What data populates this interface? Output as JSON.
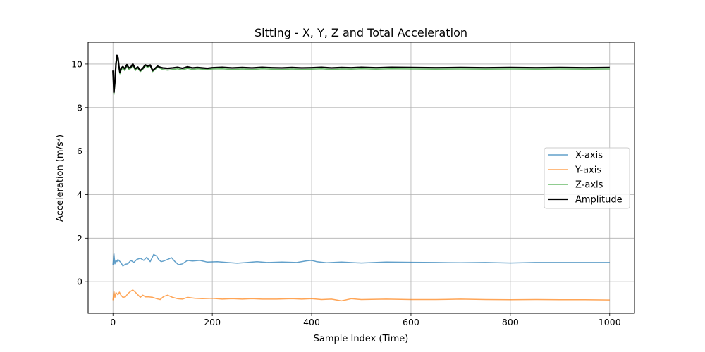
{
  "chart_data": {
    "type": "line",
    "title": "Sitting - X, Y, Z and Total Acceleration",
    "xlabel": "Sample Index (Time)",
    "ylabel": "Acceleration (m/s²)",
    "xlim": [
      -50,
      1050
    ],
    "ylim": [
      -1.45,
      11.0
    ],
    "xticks": [
      0,
      200,
      400,
      600,
      800,
      1000
    ],
    "yticks": [
      0,
      2,
      4,
      6,
      8,
      10
    ],
    "grid": true,
    "legend_position": "center-right",
    "series": [
      {
        "name": "X-axis",
        "color": "#1f77b4",
        "alpha": 0.7,
        "width": 1.5,
        "x": [
          0,
          2,
          4,
          6,
          8,
          10,
          13,
          16,
          20,
          25,
          30,
          36,
          42,
          48,
          55,
          62,
          68,
          75,
          82,
          88,
          92,
          97,
          102,
          110,
          118,
          125,
          132,
          140,
          150,
          160,
          175,
          190,
          210,
          230,
          250,
          270,
          290,
          310,
          340,
          370,
          390,
          400,
          410,
          430,
          460,
          500,
          550,
          600,
          650,
          700,
          750,
          800,
          850,
          900,
          950,
          1000
        ],
        "y": [
          0.78,
          1.28,
          0.82,
          0.98,
          0.92,
          1.02,
          0.95,
          0.88,
          0.72,
          0.8,
          0.82,
          0.98,
          0.88,
          1.02,
          1.08,
          0.98,
          1.12,
          0.92,
          1.25,
          1.18,
          1.02,
          0.92,
          0.95,
          1.02,
          1.1,
          0.92,
          0.78,
          0.82,
          0.98,
          0.95,
          0.98,
          0.9,
          0.92,
          0.88,
          0.85,
          0.88,
          0.92,
          0.88,
          0.9,
          0.88,
          0.96,
          0.98,
          0.92,
          0.87,
          0.9,
          0.86,
          0.9,
          0.89,
          0.88,
          0.87,
          0.88,
          0.86,
          0.88,
          0.88,
          0.88,
          0.88
        ]
      },
      {
        "name": "Y-axis",
        "color": "#ff7f0e",
        "alpha": 0.7,
        "width": 1.5,
        "x": [
          0,
          2,
          4,
          6,
          8,
          10,
          13,
          16,
          20,
          25,
          30,
          35,
          40,
          45,
          50,
          55,
          60,
          66,
          72,
          80,
          88,
          95,
          102,
          110,
          120,
          130,
          140,
          150,
          165,
          180,
          200,
          220,
          240,
          260,
          280,
          300,
          330,
          360,
          380,
          400,
          420,
          440,
          460,
          480,
          500,
          550,
          600,
          650,
          700,
          750,
          800,
          850,
          900,
          950,
          1000
        ],
        "y": [
          -0.85,
          -0.45,
          -0.72,
          -0.5,
          -0.55,
          -0.6,
          -0.48,
          -0.62,
          -0.72,
          -0.7,
          -0.55,
          -0.45,
          -0.38,
          -0.48,
          -0.6,
          -0.72,
          -0.62,
          -0.7,
          -0.7,
          -0.72,
          -0.78,
          -0.82,
          -0.68,
          -0.62,
          -0.72,
          -0.78,
          -0.8,
          -0.72,
          -0.76,
          -0.78,
          -0.76,
          -0.8,
          -0.78,
          -0.8,
          -0.78,
          -0.8,
          -0.8,
          -0.78,
          -0.8,
          -0.78,
          -0.82,
          -0.8,
          -0.88,
          -0.78,
          -0.82,
          -0.8,
          -0.82,
          -0.82,
          -0.8,
          -0.82,
          -0.83,
          -0.82,
          -0.83,
          -0.83,
          -0.84
        ]
      },
      {
        "name": "Z-axis",
        "color": "#2ca02c",
        "alpha": 0.7,
        "width": 1.5,
        "x": [
          0,
          2,
          4,
          6,
          8,
          10,
          12,
          14,
          17,
          20,
          24,
          28,
          32,
          36,
          40,
          45,
          50,
          55,
          60,
          65,
          70,
          75,
          80,
          85,
          90,
          95,
          100,
          110,
          120,
          130,
          140,
          150,
          160,
          170,
          180,
          190,
          200,
          220,
          240,
          260,
          280,
          300,
          320,
          340,
          360,
          380,
          400,
          420,
          440,
          460,
          480,
          500,
          530,
          560,
          600,
          650,
          700,
          750,
          800,
          850,
          900,
          950,
          1000
        ],
        "y": [
          9.6,
          8.6,
          9.1,
          9.9,
          10.3,
          10.2,
          9.8,
          9.55,
          9.75,
          9.8,
          9.7,
          9.9,
          9.75,
          9.8,
          9.95,
          9.7,
          9.8,
          9.65,
          9.75,
          9.9,
          9.85,
          9.9,
          9.65,
          9.75,
          9.85,
          9.8,
          9.75,
          9.72,
          9.75,
          9.78,
          9.73,
          9.8,
          9.75,
          9.78,
          9.76,
          9.74,
          9.77,
          9.78,
          9.75,
          9.77,
          9.75,
          9.78,
          9.76,
          9.75,
          9.77,
          9.75,
          9.76,
          9.78,
          9.75,
          9.77,
          9.76,
          9.78,
          9.76,
          9.78,
          9.77,
          9.76,
          9.77,
          9.76,
          9.77,
          9.76,
          9.77,
          9.76,
          9.77
        ]
      },
      {
        "name": "Amplitude",
        "color": "#000000",
        "alpha": 1.0,
        "width": 2.2,
        "x": [
          0,
          2,
          4,
          6,
          8,
          10,
          12,
          14,
          17,
          20,
          24,
          28,
          32,
          36,
          40,
          45,
          50,
          55,
          60,
          65,
          70,
          75,
          80,
          85,
          90,
          95,
          100,
          110,
          120,
          130,
          140,
          150,
          160,
          170,
          180,
          190,
          200,
          220,
          240,
          260,
          280,
          300,
          320,
          340,
          360,
          380,
          400,
          420,
          440,
          460,
          480,
          500,
          530,
          560,
          600,
          650,
          700,
          750,
          800,
          850,
          900,
          950,
          1000
        ],
        "y": [
          9.7,
          8.7,
          9.2,
          10.0,
          10.4,
          10.3,
          9.9,
          9.62,
          9.82,
          9.88,
          9.78,
          9.97,
          9.82,
          9.86,
          10.0,
          9.78,
          9.86,
          9.7,
          9.8,
          9.96,
          9.9,
          9.95,
          9.7,
          9.8,
          9.9,
          9.85,
          9.82,
          9.8,
          9.82,
          9.85,
          9.8,
          9.87,
          9.82,
          9.84,
          9.82,
          9.8,
          9.83,
          9.85,
          9.82,
          9.84,
          9.82,
          9.85,
          9.83,
          9.82,
          9.84,
          9.82,
          9.83,
          9.85,
          9.82,
          9.84,
          9.83,
          9.85,
          9.83,
          9.85,
          9.84,
          9.83,
          9.84,
          9.83,
          9.84,
          9.83,
          9.84,
          9.83,
          9.84
        ]
      }
    ]
  }
}
